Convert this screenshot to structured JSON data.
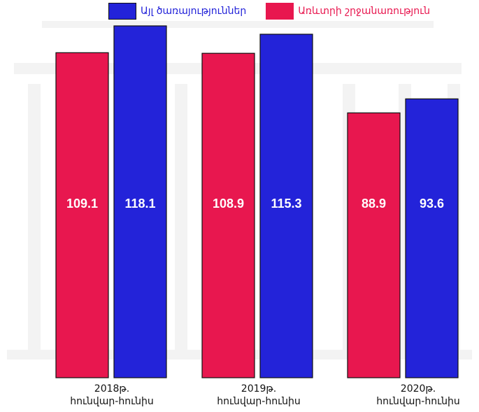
{
  "chart_data": {
    "type": "bar",
    "categories": [
      {
        "year": "2018թ.",
        "period": "հունվար-հունիս"
      },
      {
        "year": "2019թ.",
        "period": "հունվար-հունիս"
      },
      {
        "year": "2020թ.",
        "period": "հունվար-հունիս"
      }
    ],
    "series": [
      {
        "name": "Առևտրի շրջանառություն",
        "color": "#e8174f",
        "values": [
          109.1,
          108.9,
          88.9
        ]
      },
      {
        "name": "Այլ ծառայություններ",
        "color": "#2323d9",
        "values": [
          118.1,
          115.3,
          93.6
        ]
      }
    ],
    "ylim": [
      0,
      120
    ],
    "grid": false,
    "legend_position": "top",
    "label_color": "#ffffff",
    "background_watermark": "faded building sketch"
  }
}
